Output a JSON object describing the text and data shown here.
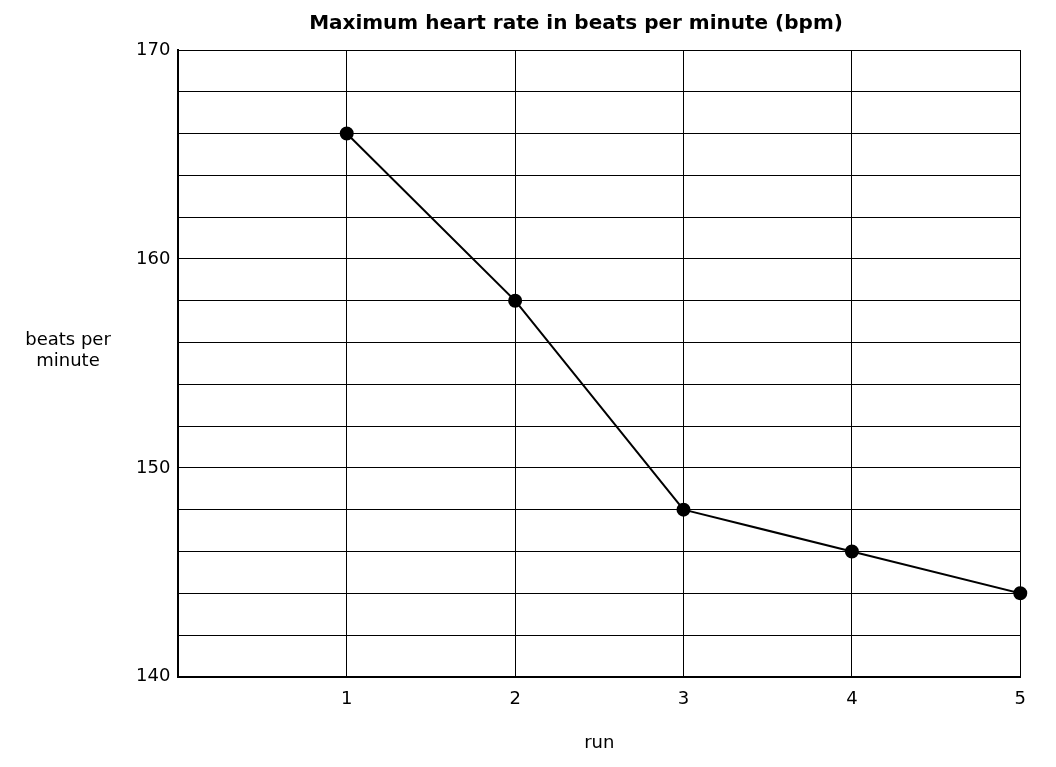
{
  "chart_data": {
    "type": "line",
    "title": "Maximum heart rate in beats per minute (bpm)",
    "xlabel": "run",
    "ylabel": "beats per minute",
    "x": [
      1,
      2,
      3,
      4,
      5
    ],
    "series": [
      {
        "color": "#000000",
        "values": [
          166,
          158,
          148,
          146,
          144
        ]
      }
    ],
    "xlim": [
      0,
      5
    ],
    "xticks": [
      1,
      2,
      3,
      4,
      5
    ],
    "ylim": [
      140,
      170
    ],
    "yticks": [
      140,
      {
        "value": 142,
        "label": null
      },
      {
        "value": 144,
        "label": null
      },
      {
        "value": 146,
        "label": null
      },
      {
        "value": 148,
        "label": null
      },
      150,
      {
        "value": 152,
        "label": null
      },
      {
        "value": 154,
        "label": null
      },
      {
        "value": 156,
        "label": null
      },
      {
        "value": 158,
        "label": null
      },
      160,
      {
        "value": 162,
        "label": null
      },
      {
        "value": 164,
        "label": null
      },
      {
        "value": 166,
        "label": null
      },
      {
        "value": 168,
        "label": null
      },
      170
    ],
    "grid": true,
    "marker": "circle",
    "line_style": "solid"
  }
}
